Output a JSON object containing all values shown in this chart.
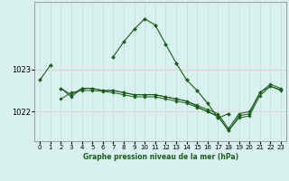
{
  "title": "Graphe pression niveau de la mer (hPa)",
  "background_color": "#d8f0ee",
  "grid_color_v": "#c8dfe0",
  "grid_color_h": "#e8c8c8",
  "line_color": "#1a5c1a",
  "marker_color": "#1a5c1a",
  "yticks": [
    1022,
    1023
  ],
  "ylim": [
    1021.3,
    1024.6
  ],
  "xlim": [
    -0.5,
    23.5
  ],
  "xticks": [
    0,
    1,
    2,
    3,
    4,
    5,
    6,
    7,
    8,
    9,
    10,
    11,
    12,
    13,
    14,
    15,
    16,
    17,
    18,
    19,
    20,
    21,
    22,
    23
  ],
  "series": [
    {
      "x": [
        0,
        1,
        2,
        3,
        4,
        5,
        6,
        7,
        8,
        9,
        10,
        11,
        12,
        13,
        14,
        15,
        16,
        17,
        18,
        19,
        20,
        21,
        22,
        23
      ],
      "y": [
        1022.75,
        1023.1,
        null,
        null,
        1022.55,
        null,
        null,
        1023.3,
        1023.65,
        1023.95,
        1024.2,
        1024.05,
        1023.6,
        1023.15,
        1022.75,
        1022.5,
        1022.2,
        1021.85,
        1021.95,
        null,
        null,
        null,
        null,
        null
      ]
    },
    {
      "x": [
        2,
        3,
        4,
        5,
        6,
        7,
        8,
        9,
        10,
        11,
        12,
        13,
        14,
        15,
        16,
        17,
        18,
        19,
        20,
        21,
        22,
        23
      ],
      "y": [
        1022.55,
        1022.35,
        1022.55,
        1022.55,
        1022.5,
        1022.5,
        1022.45,
        1022.4,
        1022.4,
        1022.4,
        1022.35,
        1022.3,
        1022.25,
        1022.15,
        1022.05,
        1021.95,
        1021.6,
        1021.95,
        1022.0,
        1022.45,
        1022.65,
        1022.55
      ]
    },
    {
      "x": [
        2,
        3,
        4,
        5,
        6,
        7,
        8,
        9,
        10,
        11,
        12,
        13,
        14,
        15,
        16,
        17,
        18,
        19,
        20,
        21,
        22,
        23
      ],
      "y": [
        1022.3,
        1022.45,
        1022.5,
        1022.5,
        1022.48,
        1022.45,
        1022.4,
        1022.35,
        1022.35,
        1022.35,
        1022.3,
        1022.25,
        1022.2,
        1022.1,
        1022.0,
        1021.9,
        1021.55,
        1021.9,
        1021.95,
        1022.45,
        1022.6,
        1022.52
      ]
    },
    {
      "x": [
        2,
        3,
        4,
        5,
        6,
        7,
        8,
        9,
        10,
        11,
        12,
        13,
        14,
        15,
        16,
        17,
        18,
        19,
        20,
        21,
        22,
        23
      ],
      "y": [
        1022.55,
        1022.4,
        1022.55,
        1022.55,
        1022.5,
        1022.5,
        1022.45,
        1022.4,
        1022.4,
        1022.4,
        1022.35,
        1022.3,
        1022.25,
        1022.12,
        1022.0,
        1021.88,
        1021.55,
        1021.85,
        1021.9,
        1022.38,
        1022.6,
        1022.5
      ]
    }
  ]
}
